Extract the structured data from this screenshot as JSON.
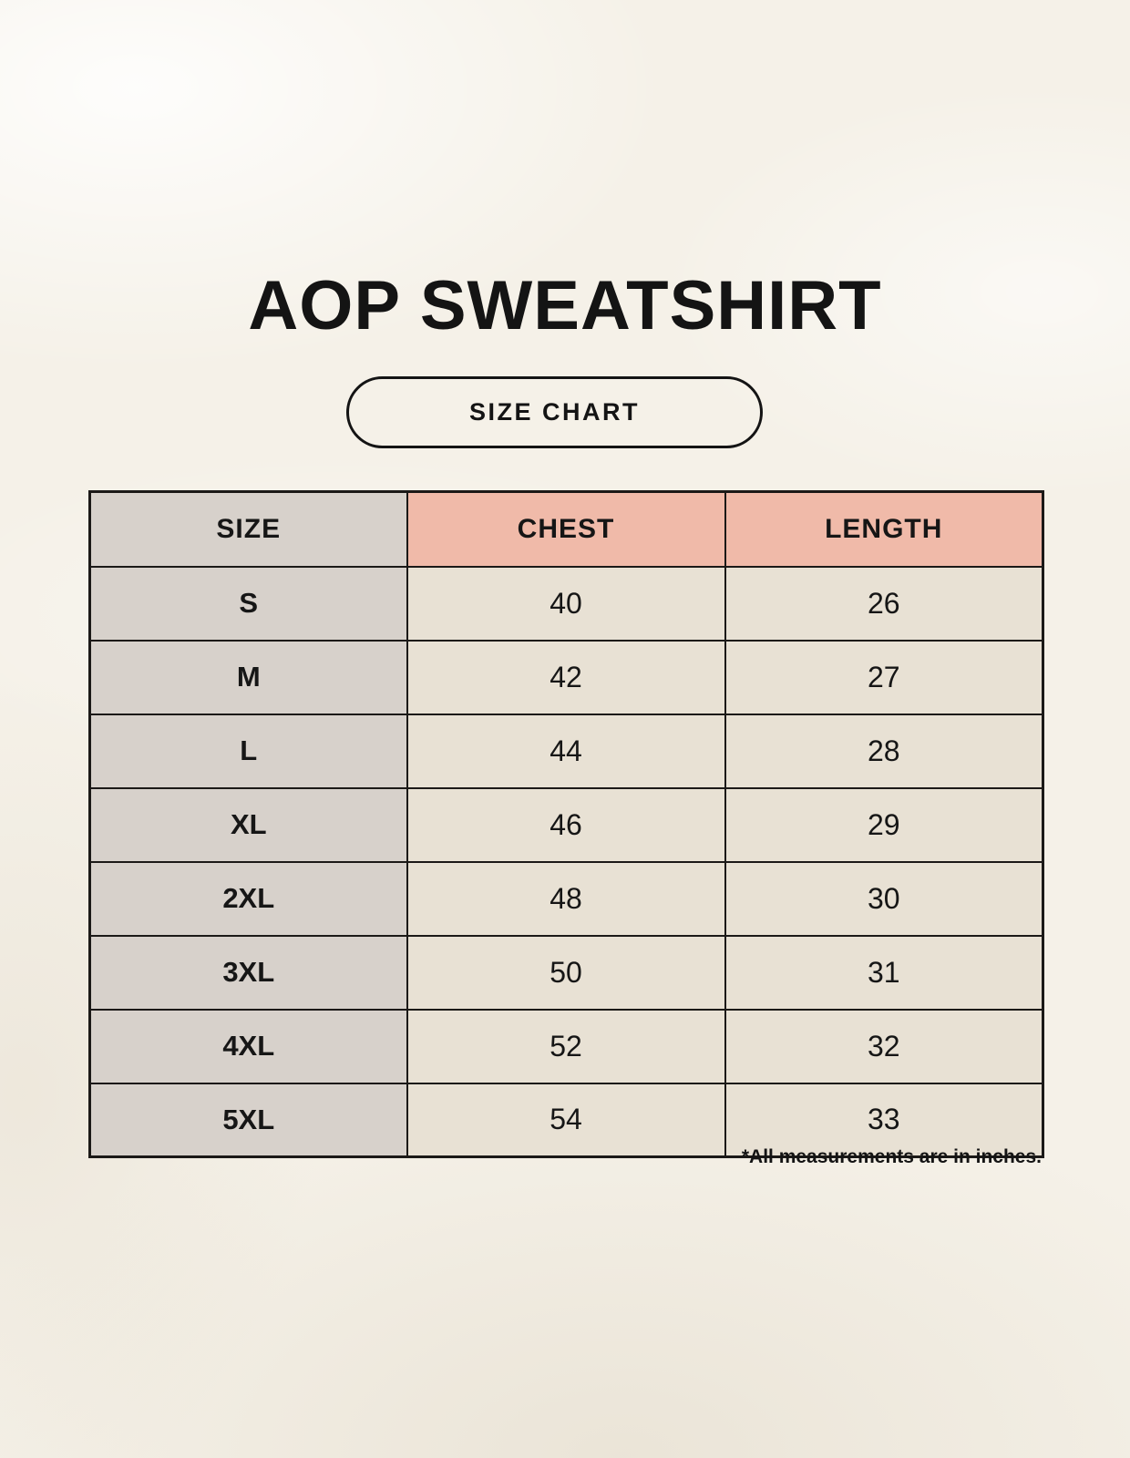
{
  "page": {
    "title": "AOP SWEATSHIRT",
    "badge_label": "SIZE CHART",
    "footnote": "*All measurements are in inches."
  },
  "colors": {
    "page_background": "#f5f1e8",
    "size_column": "#d7d1cb",
    "header_accent": "#f0baa9",
    "data_cell": "#e8e1d4",
    "border": "#1b1917",
    "text": "#141414"
  },
  "chart_data": {
    "type": "table",
    "title": "AOP SWEATSHIRT",
    "subtitle": "SIZE CHART",
    "columns": [
      "SIZE",
      "CHEST",
      "LENGTH"
    ],
    "rows": [
      [
        "S",
        "40",
        "26"
      ],
      [
        "M",
        "42",
        "27"
      ],
      [
        "L",
        "44",
        "28"
      ],
      [
        "XL",
        "46",
        "29"
      ],
      [
        "2XL",
        "48",
        "30"
      ],
      [
        "3XL",
        "50",
        "31"
      ],
      [
        "4XL",
        "52",
        "32"
      ],
      [
        "5XL",
        "54",
        "33"
      ]
    ],
    "footnote": "*All measurements are in inches."
  }
}
